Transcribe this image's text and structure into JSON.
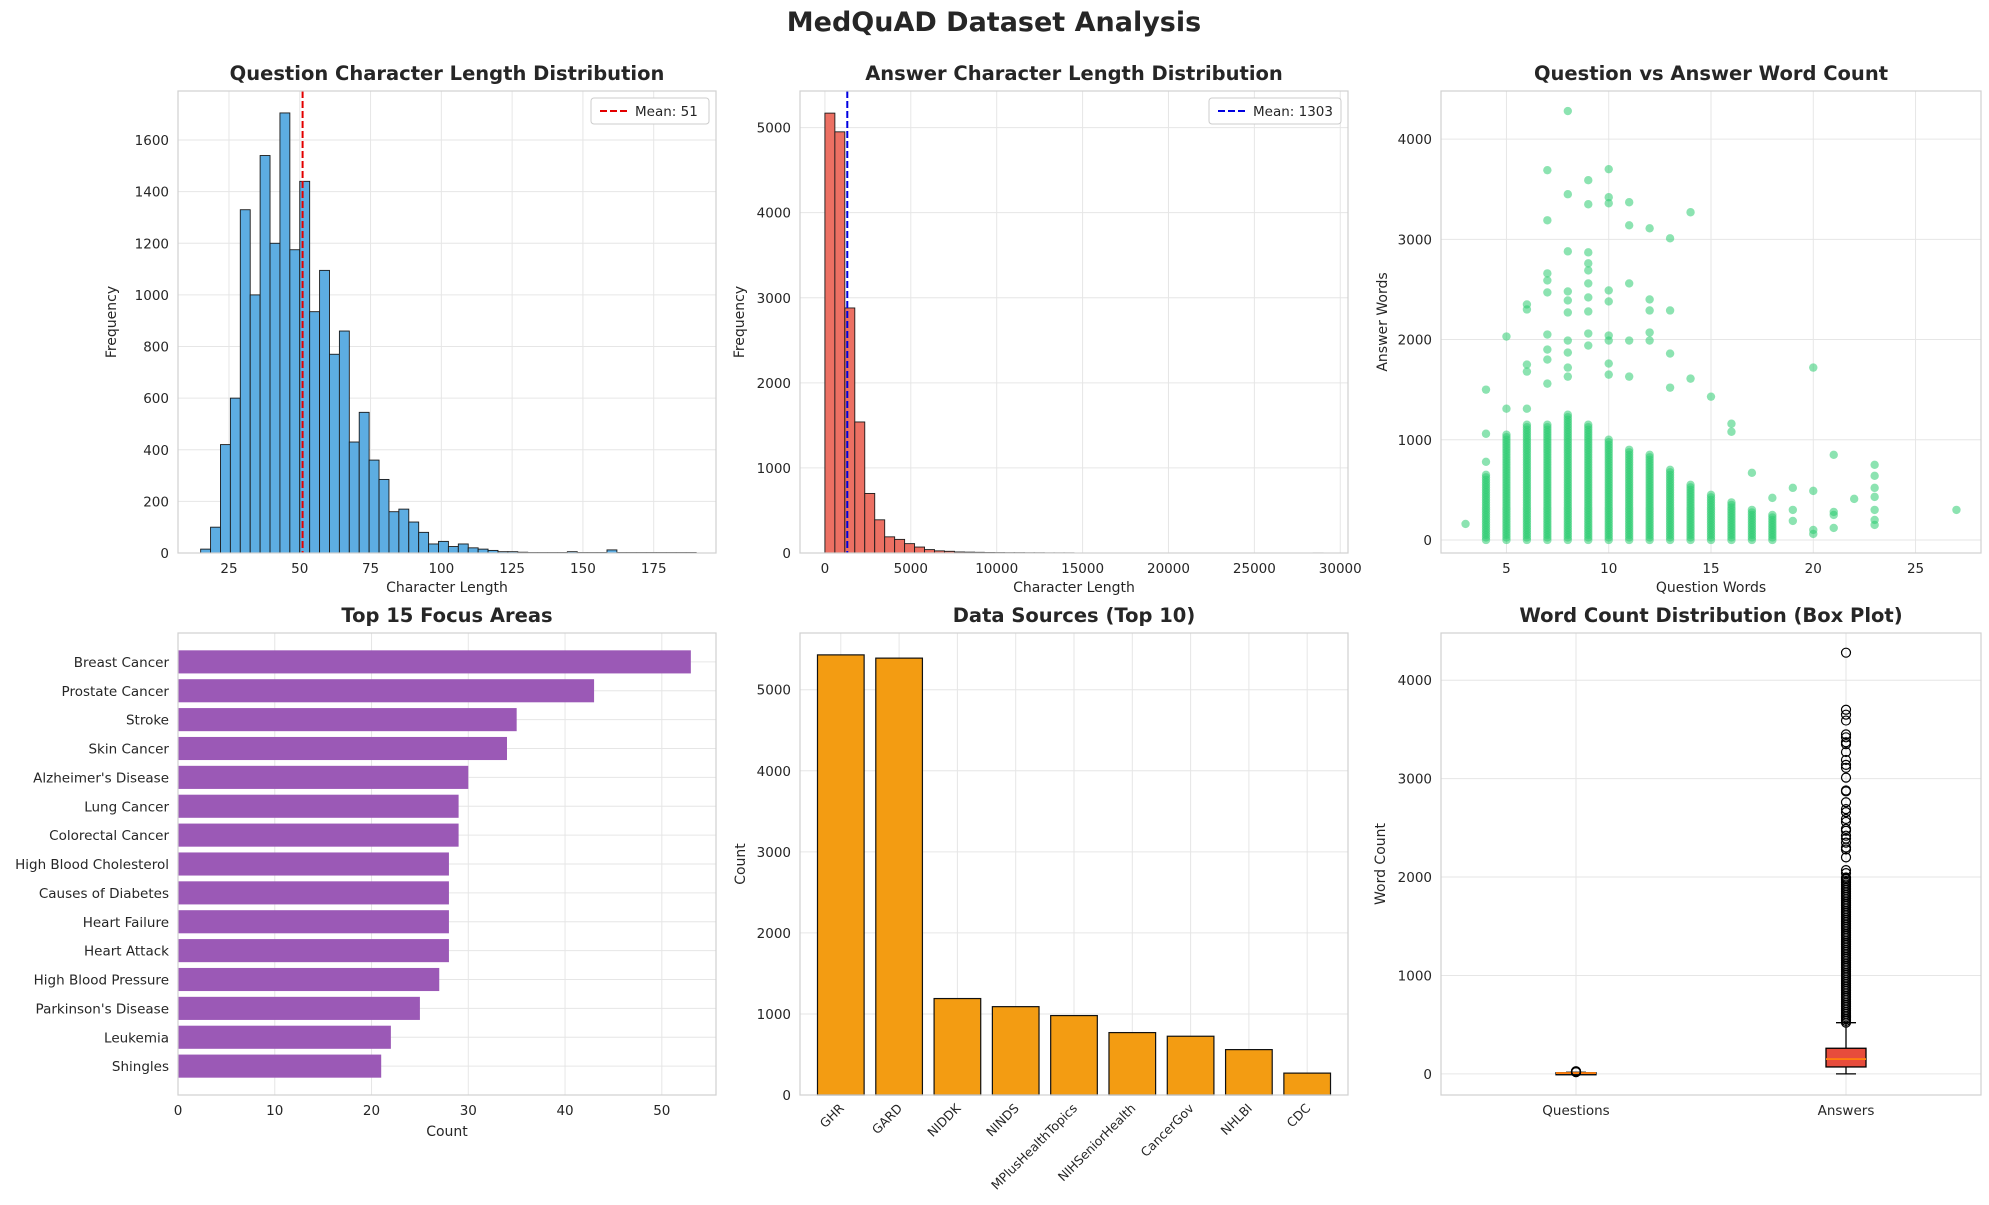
{
  "suptitle": "MedQuAD Dataset Analysis",
  "colors": {
    "question_hist": "#5dade2",
    "answer_hist": "#ec7063",
    "scatter": "#2ecc71",
    "focus_bars": "#9b59b6",
    "source_bars": "#f39c12",
    "box_fill": "#e74c3c",
    "median": "#ff7f0e",
    "mean_line_q": "#e30000",
    "mean_line_a": "#0000e0",
    "grid": "#e6e6e6",
    "spine": "#d0d0d0"
  },
  "chart_data": [
    {
      "type": "bar",
      "title": "Question Character Length Distribution",
      "xlabel": "Character Length",
      "ylabel": "Frequency",
      "xlim": [
        7,
        197
      ],
      "ylim": [
        0,
        1790
      ],
      "xticks": [
        25,
        50,
        75,
        100,
        125,
        150,
        175
      ],
      "yticks": [
        0,
        200,
        400,
        600,
        800,
        1000,
        1200,
        1400,
        1600
      ],
      "bin_start": 15,
      "bin_width": 3.5,
      "values": [
        15,
        100,
        420,
        600,
        1330,
        1000,
        1540,
        1200,
        1705,
        1175,
        1440,
        935,
        1095,
        770,
        860,
        430,
        545,
        360,
        285,
        160,
        170,
        120,
        80,
        35,
        45,
        25,
        35,
        20,
        15,
        10,
        5,
        5,
        3,
        2,
        2,
        2,
        2,
        5,
        2,
        2,
        2,
        12,
        2,
        2,
        2,
        2,
        2,
        2,
        2,
        2
      ],
      "mean_line": {
        "value": 51,
        "label": "Mean: 51"
      },
      "legend": "top-right",
      "grid": true
    },
    {
      "type": "bar",
      "title": "Answer Character Length Distribution",
      "xlabel": "Character Length",
      "ylabel": "Frequency",
      "xlim": [
        -1450,
        30450
      ],
      "ylim": [
        0,
        5430
      ],
      "xticks": [
        0,
        5000,
        10000,
        15000,
        20000,
        25000,
        30000
      ],
      "yticks": [
        0,
        1000,
        2000,
        3000,
        4000,
        5000
      ],
      "bin_start": 0,
      "bin_width": 580,
      "values": [
        5170,
        4950,
        2880,
        1540,
        700,
        390,
        190,
        160,
        110,
        70,
        40,
        25,
        20,
        12,
        10,
        8,
        6,
        5,
        4,
        4,
        3,
        3,
        2,
        2,
        2,
        0,
        0,
        0,
        0,
        0,
        0,
        0,
        0,
        0,
        0,
        0,
        0,
        0,
        0,
        0,
        0,
        0,
        0,
        0,
        0,
        0,
        0,
        0,
        0,
        1
      ],
      "mean_line": {
        "value": 1303,
        "label": "Mean: 1303"
      },
      "legend": "top-right",
      "grid": true
    },
    {
      "type": "scatter",
      "title": "Question vs Answer Word Count",
      "xlabel": "Question Words",
      "ylabel": "Answer Words",
      "xlim": [
        1.8,
        28.2
      ],
      "ylim": [
        -130,
        4480
      ],
      "xticks": [
        5,
        10,
        15,
        20,
        25
      ],
      "yticks": [
        0,
        1000,
        2000,
        3000,
        4000
      ],
      "outliers": [
        [
          3,
          160
        ],
        [
          4,
          1500
        ],
        [
          4,
          1060
        ],
        [
          4,
          780
        ],
        [
          5,
          2030
        ],
        [
          5,
          1310
        ],
        [
          6,
          2350
        ],
        [
          6,
          2300
        ],
        [
          6,
          1750
        ],
        [
          6,
          1680
        ],
        [
          6,
          1310
        ],
        [
          7,
          3690
        ],
        [
          7,
          3190
        ],
        [
          7,
          2660
        ],
        [
          7,
          2590
        ],
        [
          7,
          2470
        ],
        [
          7,
          2050
        ],
        [
          7,
          1900
        ],
        [
          7,
          1800
        ],
        [
          7,
          1560
        ],
        [
          8,
          4280
        ],
        [
          8,
          3450
        ],
        [
          8,
          2880
        ],
        [
          8,
          2480
        ],
        [
          8,
          2390
        ],
        [
          8,
          2270
        ],
        [
          8,
          1990
        ],
        [
          8,
          1870
        ],
        [
          8,
          1720
        ],
        [
          8,
          1630
        ],
        [
          9,
          3590
        ],
        [
          9,
          3350
        ],
        [
          9,
          2870
        ],
        [
          9,
          2760
        ],
        [
          9,
          2690
        ],
        [
          9,
          2560
        ],
        [
          9,
          2420
        ],
        [
          9,
          2280
        ],
        [
          9,
          2060
        ],
        [
          9,
          1940
        ],
        [
          10,
          3700
        ],
        [
          10,
          3420
        ],
        [
          10,
          3360
        ],
        [
          10,
          2490
        ],
        [
          10,
          2380
        ],
        [
          10,
          2040
        ],
        [
          10,
          1990
        ],
        [
          10,
          1760
        ],
        [
          10,
          1650
        ],
        [
          11,
          3370
        ],
        [
          11,
          3140
        ],
        [
          11,
          2560
        ],
        [
          11,
          1990
        ],
        [
          11,
          1630
        ],
        [
          12,
          3110
        ],
        [
          12,
          2400
        ],
        [
          12,
          2290
        ],
        [
          12,
          2070
        ],
        [
          12,
          1990
        ],
        [
          13,
          3010
        ],
        [
          13,
          2290
        ],
        [
          13,
          1860
        ],
        [
          13,
          1520
        ],
        [
          14,
          3270
        ],
        [
          14,
          1610
        ],
        [
          15,
          1430
        ],
        [
          16,
          1160
        ],
        [
          16,
          1080
        ],
        [
          17,
          670
        ],
        [
          18,
          420
        ],
        [
          19,
          520
        ],
        [
          19,
          300
        ],
        [
          19,
          190
        ],
        [
          20,
          1720
        ],
        [
          20,
          490
        ],
        [
          20,
          100
        ],
        [
          20,
          60
        ],
        [
          21,
          850
        ],
        [
          21,
          280
        ],
        [
          21,
          250
        ],
        [
          21,
          120
        ],
        [
          22,
          410
        ],
        [
          23,
          750
        ],
        [
          23,
          640
        ],
        [
          23,
          520
        ],
        [
          23,
          430
        ],
        [
          23,
          300
        ],
        [
          23,
          200
        ],
        [
          23,
          150
        ],
        [
          27,
          300
        ]
      ],
      "column_ranges": [
        [
          4,
          0,
          650
        ],
        [
          5,
          0,
          1050
        ],
        [
          6,
          0,
          1150
        ],
        [
          7,
          0,
          1150
        ],
        [
          8,
          0,
          1250
        ],
        [
          9,
          0,
          1150
        ],
        [
          10,
          0,
          1000
        ],
        [
          11,
          0,
          900
        ],
        [
          12,
          0,
          850
        ],
        [
          13,
          0,
          700
        ],
        [
          14,
          0,
          550
        ],
        [
          15,
          0,
          450
        ],
        [
          16,
          0,
          380
        ],
        [
          17,
          0,
          320
        ],
        [
          18,
          0,
          250
        ]
      ],
      "grid": true
    },
    {
      "type": "bar",
      "orientation": "horizontal",
      "title": "Top 15 Focus Areas",
      "xlabel": "Count",
      "ylabel": "",
      "xlim": [
        0,
        55.6
      ],
      "xticks": [
        0,
        10,
        20,
        30,
        40,
        50
      ],
      "categories": [
        "Breast Cancer",
        "Prostate Cancer",
        "Stroke",
        "Skin Cancer",
        "Alzheimer's Disease",
        "Lung Cancer",
        "Colorectal Cancer",
        "High Blood Cholesterol",
        "Causes of Diabetes",
        "Heart Failure",
        "Heart Attack",
        "High Blood Pressure",
        "Parkinson's Disease",
        "Leukemia",
        "Shingles"
      ],
      "values": [
        53,
        43,
        35,
        34,
        30,
        29,
        29,
        28,
        28,
        28,
        28,
        27,
        25,
        22,
        21
      ],
      "grid": true
    },
    {
      "type": "bar",
      "title": "Data Sources (Top 10)",
      "xlabel": "",
      "ylabel": "Count",
      "ylim": [
        0,
        5700
      ],
      "yticks": [
        0,
        1000,
        2000,
        3000,
        4000,
        5000
      ],
      "categories": [
        "GHR",
        "GARD",
        "NIDDK",
        "NINDS",
        "MPlusHealthTopics",
        "NIHSeniorHealth",
        "CancerGov",
        "NHLBI",
        "CDC"
      ],
      "values": [
        5430,
        5390,
        1190,
        1090,
        980,
        770,
        725,
        560,
        270
      ],
      "grid": true
    },
    {
      "type": "box",
      "title": "Word Count Distribution (Box Plot)",
      "xlabel": "",
      "ylabel": "Word Count",
      "ylim": [
        -215,
        4480
      ],
      "yticks": [
        0,
        1000,
        2000,
        3000,
        4000
      ],
      "categories": [
        "Questions",
        "Answers"
      ],
      "boxes": [
        {
          "name": "Questions",
          "whisker_low": 3,
          "q1": 7,
          "median": 8,
          "q3": 11,
          "whisker_high": 16,
          "outliers": [
            17,
            18,
            19,
            20,
            21,
            23,
            27
          ]
        },
        {
          "name": "Answers",
          "whisker_low": 0,
          "q1": 70,
          "median": 150,
          "q3": 260,
          "whisker_high": 520,
          "outliers": [
            4280,
            3700,
            3650,
            3590,
            3450,
            3420,
            3370,
            3350,
            3270,
            3190,
            3140,
            3110,
            3010,
            2880,
            2870,
            2760,
            2690,
            2660,
            2590,
            2560,
            2490,
            2470,
            2420,
            2390,
            2350,
            2300,
            2280,
            2200,
            2070,
            2040,
            1990
          ]
        }
      ],
      "grid": true
    }
  ]
}
